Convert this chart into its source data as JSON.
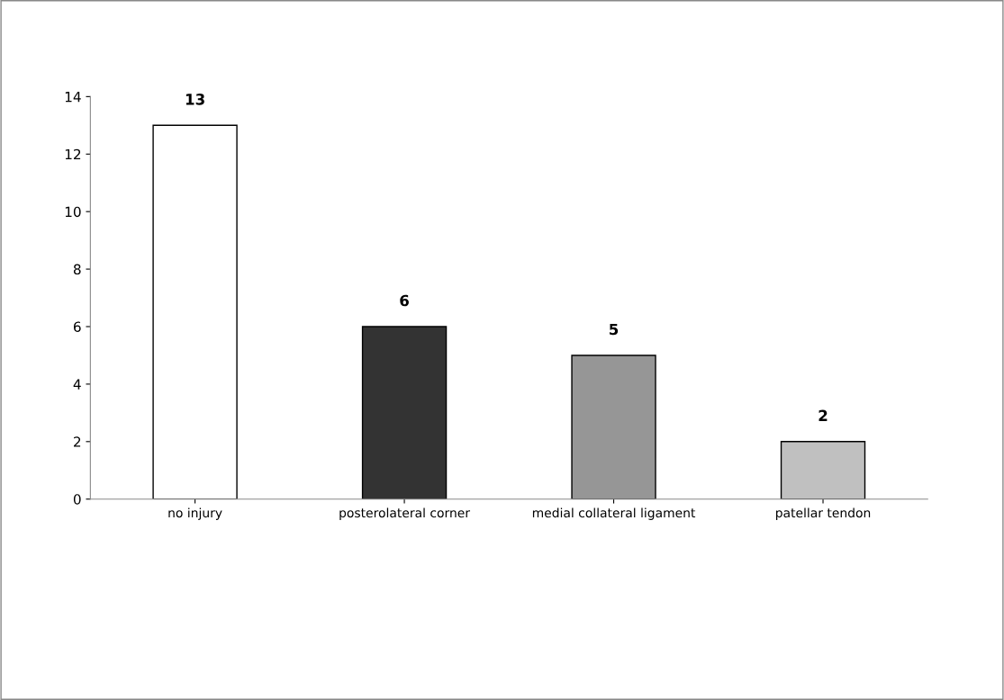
{
  "chart_data": {
    "type": "bar",
    "categories": [
      "no injury",
      "posterolateral corner",
      "medial collateral ligament",
      "patellar tendon"
    ],
    "values": [
      13,
      6,
      5,
      2
    ],
    "colors": [
      "#ffffff",
      "#333333",
      "#969696",
      "#c0c0c0"
    ],
    "ylim": [
      0,
      14
    ],
    "yticks": [
      0,
      2,
      4,
      6,
      8,
      10,
      12,
      14
    ],
    "data_labels": true,
    "grid": false,
    "legend": false
  }
}
